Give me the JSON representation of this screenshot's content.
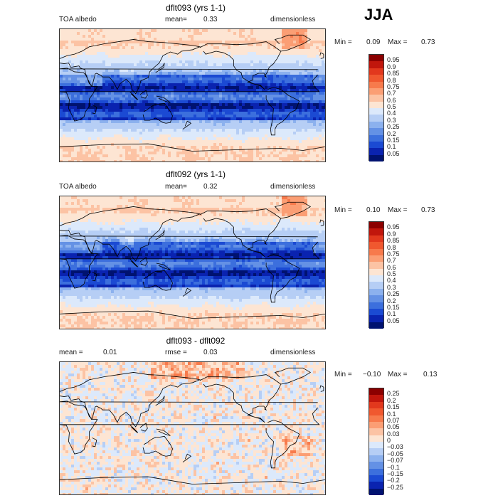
{
  "season": "JJA",
  "panels": [
    {
      "title": "dflt093 (yrs 1-1)",
      "left_label": "TOA albedo",
      "mid_label": "mean=",
      "mid_value": "0.33",
      "right_label": "dimensionless",
      "min_label": "Min =",
      "min_value": "0.09",
      "max_label": "Max =",
      "max_value": "0.73",
      "legend_levels": [
        "0.95",
        "0.9",
        "0.85",
        "0.8",
        "0.75",
        "0.7",
        "0.6",
        "0.5",
        "0.4",
        "0.3",
        "0.25",
        "0.2",
        "0.15",
        "0.1",
        "0.05"
      ],
      "colors": [
        "#8b0000",
        "#c1160c",
        "#e2381d",
        "#f0582f",
        "#f77a4c",
        "#fb9e74",
        "#fcc3a4",
        "#fde5d3",
        "#dce9fb",
        "#b6cef5",
        "#8cb1ee",
        "#6491e5",
        "#3c6fdd",
        "#1b4ad3",
        "#0a23b0",
        "#001270"
      ]
    },
    {
      "title": "dflt092 (yrs 1-1)",
      "left_label": "TOA albedo",
      "mid_label": "mean=",
      "mid_value": "0.32",
      "right_label": "dimensionless",
      "min_label": "Min =",
      "min_value": "0.10",
      "max_label": "Max =",
      "max_value": "0.73",
      "legend_levels": [
        "0.95",
        "0.9",
        "0.85",
        "0.8",
        "0.75",
        "0.7",
        "0.6",
        "0.5",
        "0.4",
        "0.3",
        "0.25",
        "0.2",
        "0.15",
        "0.1",
        "0.05"
      ],
      "colors": [
        "#8b0000",
        "#c1160c",
        "#e2381d",
        "#f0582f",
        "#f77a4c",
        "#fb9e74",
        "#fcc3a4",
        "#fde5d3",
        "#dce9fb",
        "#b6cef5",
        "#8cb1ee",
        "#6491e5",
        "#3c6fdd",
        "#1b4ad3",
        "#0a23b0",
        "#001270"
      ]
    },
    {
      "title": "dflt093 - dflt092",
      "left_label": "mean =",
      "left_value": "0.01",
      "mid_label": "rmse =",
      "mid_value": "0.03",
      "right_label": "dimensionless",
      "min_label": "Min =",
      "min_value": "−0.10",
      "max_label": "Max =",
      "max_value": "0.13",
      "legend_levels": [
        "0.25",
        "0.2",
        "0.15",
        "0.1",
        "0.07",
        "0.05",
        "0.03",
        "0",
        "−0.03",
        "−0.05",
        "−0.07",
        "−0.1",
        "−0.15",
        "−0.2",
        "−0.25"
      ],
      "colors": [
        "#8b0000",
        "#c1160c",
        "#e2381d",
        "#f0582f",
        "#f77a4c",
        "#fb9e74",
        "#fcc3a4",
        "#fde5d3",
        "#dce9fb",
        "#b6cef5",
        "#8cb1ee",
        "#6491e5",
        "#3c6fdd",
        "#1b4ad3",
        "#0a23b0",
        "#001270"
      ]
    }
  ]
}
